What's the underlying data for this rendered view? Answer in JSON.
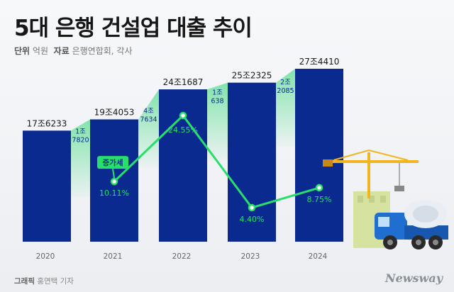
{
  "header": {
    "title": "5대 은행 건설업 대출 추이",
    "unit_label": "단위",
    "unit_value": "억원",
    "source_label": "자료",
    "source_value": "은행연합회, 각사"
  },
  "footer": {
    "credit_label": "그래픽",
    "credit_value": "홍연택 기자",
    "brand": "Newsway"
  },
  "colors": {
    "bar": "#0b2a8f",
    "increase_band": "#7be3a7",
    "line": "#27df6a",
    "tag": "#27df6a"
  },
  "chart_data": {
    "type": "bar",
    "categories": [
      "2020",
      "2021",
      "2022",
      "2023",
      "2024"
    ],
    "series": [
      {
        "values": [
          176233,
          194053,
          241687,
          252325,
          274410
        ],
        "labels": [
          "17조6233",
          "19조4053",
          "24조1687",
          "25조2325",
          "27조4410"
        ]
      }
    ],
    "increase": {
      "values": [
        17820,
        47634,
        10638,
        22085
      ],
      "labels": [
        [
          "1조",
          "7820"
        ],
        [
          "4조",
          "7634"
        ],
        [
          "1조",
          "638"
        ],
        [
          "2조",
          "2085"
        ]
      ]
    },
    "growth_rate": {
      "tag": "증가세",
      "categories": [
        "2021",
        "2022",
        "2023",
        "2024"
      ],
      "values": [
        10.11,
        24.55,
        4.4,
        8.75
      ],
      "labels": [
        "10.11%",
        "24.55%",
        "4.40%",
        "8.75%"
      ]
    }
  }
}
